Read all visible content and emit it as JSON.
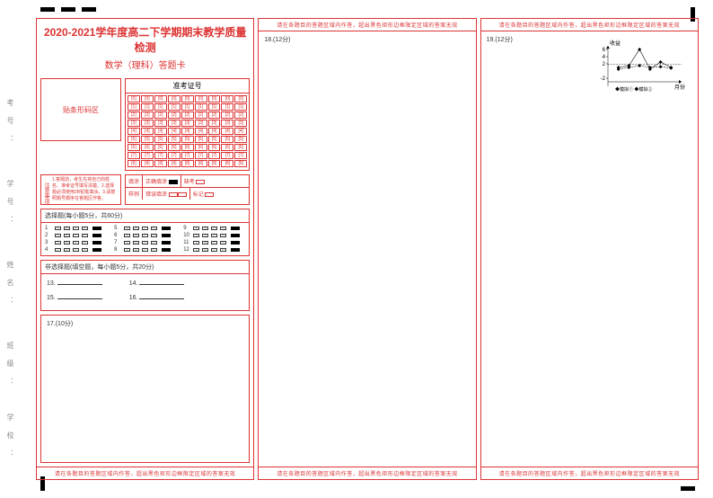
{
  "header": {
    "title": "2020-2021学年度高二下学期期末教学质量检测",
    "subtitle": "数学（理科）答题卡"
  },
  "side_labels": [
    "考号：",
    "学号：",
    "姓名：",
    "班级：",
    "学校："
  ],
  "barcode_label": "贴条形码区",
  "exam_number": {
    "header": "准考证号",
    "rows": 9,
    "cols": 9
  },
  "notice": {
    "label": "注意事项",
    "text": "1.答题前，考生先将自己的姓名、准考证号填写清楚。2.选择题必须使用2B铅笔填涂。3.请按照题号顺序在答题区作答。"
  },
  "fill_example": {
    "r1c1": "填涂",
    "r1c2": "正确填涂",
    "r1c3": "缺考",
    "r2c1": "样例",
    "r2c2": "错误填涂",
    "r2c3": "标记"
  },
  "mcq": {
    "header": "选择题(每小题5分，共60分)",
    "count": 12,
    "options": [
      "A",
      "B",
      "C",
      "D"
    ]
  },
  "fill_blank": {
    "header": "非选择题(填空题，每小题5分，共20分)",
    "items": [
      "13.",
      "14.",
      "15.",
      "16."
    ]
  },
  "q17_label": "17.(10分)",
  "warning": "请在各题目的答题区域内作答，超出黑色矩形边框限定区域的答案无效",
  "panel2": {
    "q_label": "18.(12分)"
  },
  "panel3": {
    "q_label": "19.(12分)",
    "chart": {
      "type": "line",
      "xlim": [
        0,
        7
      ],
      "ylim": [
        -3,
        7
      ],
      "y_ticks": [
        -2,
        2,
        4,
        6
      ],
      "series": [
        {
          "label": "模拟①",
          "marker": "diamond",
          "color": "#000",
          "points": [
            [
              1,
              1
            ],
            [
              2,
              1.5
            ],
            [
              3,
              6
            ],
            [
              4,
              0.5
            ],
            [
              5,
              2.5
            ],
            [
              6,
              1
            ]
          ]
        },
        {
          "label": "模拟②",
          "marker": "diamond",
          "color": "#000",
          "dash": true,
          "points": [
            [
              1,
              0.5
            ],
            [
              2,
              1
            ],
            [
              3,
              1.5
            ],
            [
              4,
              1
            ],
            [
              5,
              1.2
            ],
            [
              6,
              0.8
            ]
          ]
        }
      ],
      "ref_line_y": 1.8,
      "ylabel": "收益",
      "xlabel": "月份",
      "font_size": 6,
      "axis_color": "#000",
      "bg": "#fff"
    }
  }
}
